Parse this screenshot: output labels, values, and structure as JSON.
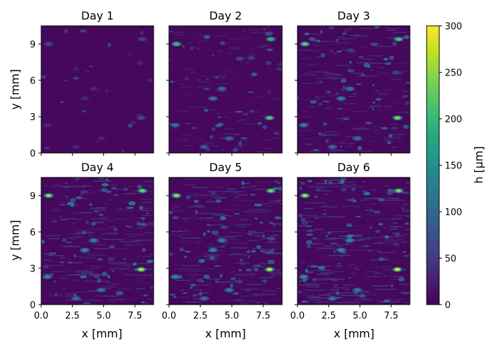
{
  "chart_data": {
    "type": "heatmap",
    "panels": [
      {
        "title": "Day 1",
        "intensity": 0.15,
        "seed": 11
      },
      {
        "title": "Day 2",
        "intensity": 0.55,
        "seed": 23
      },
      {
        "title": "Day 3",
        "intensity": 0.75,
        "seed": 37
      },
      {
        "title": "Day 4",
        "intensity": 0.9,
        "seed": 41
      },
      {
        "title": "Day 5",
        "intensity": 0.95,
        "seed": 53
      },
      {
        "title": "Day 6",
        "intensity": 1.0,
        "seed": 67
      }
    ],
    "xlabel": "x [mm]",
    "ylabel": "y [mm]",
    "xlim": [
      0,
      9
    ],
    "ylim": [
      0,
      10.5
    ],
    "xticks": [
      "0.0",
      "2.5",
      "5.0",
      "7.5"
    ],
    "xtick_values": [
      0,
      2.5,
      5,
      7.5
    ],
    "yticks": [
      "0",
      "3",
      "6",
      "9"
    ],
    "ytick_values": [
      0,
      3,
      6,
      9
    ],
    "colorbar": {
      "label": "h [μm]",
      "min": 0,
      "max": 300,
      "ticks": [
        "0",
        "50",
        "100",
        "150",
        "200",
        "250",
        "300"
      ],
      "tick_values": [
        0,
        50,
        100,
        150,
        200,
        250,
        300
      ],
      "colormap": "viridis"
    },
    "hotspots": [
      {
        "x": 8.0,
        "y": 2.9,
        "h": 280
      },
      {
        "x": 8.1,
        "y": 9.4,
        "h": 240
      },
      {
        "x": 0.6,
        "y": 9.0,
        "h": 260
      },
      {
        "x": 3.5,
        "y": 4.5,
        "h": 150
      },
      {
        "x": 4.2,
        "y": 5.3,
        "h": 140
      },
      {
        "x": 0.5,
        "y": 2.3,
        "h": 150
      },
      {
        "x": 4.8,
        "y": 1.2,
        "h": 130
      },
      {
        "x": 2.8,
        "y": 0.5,
        "h": 120
      }
    ]
  }
}
